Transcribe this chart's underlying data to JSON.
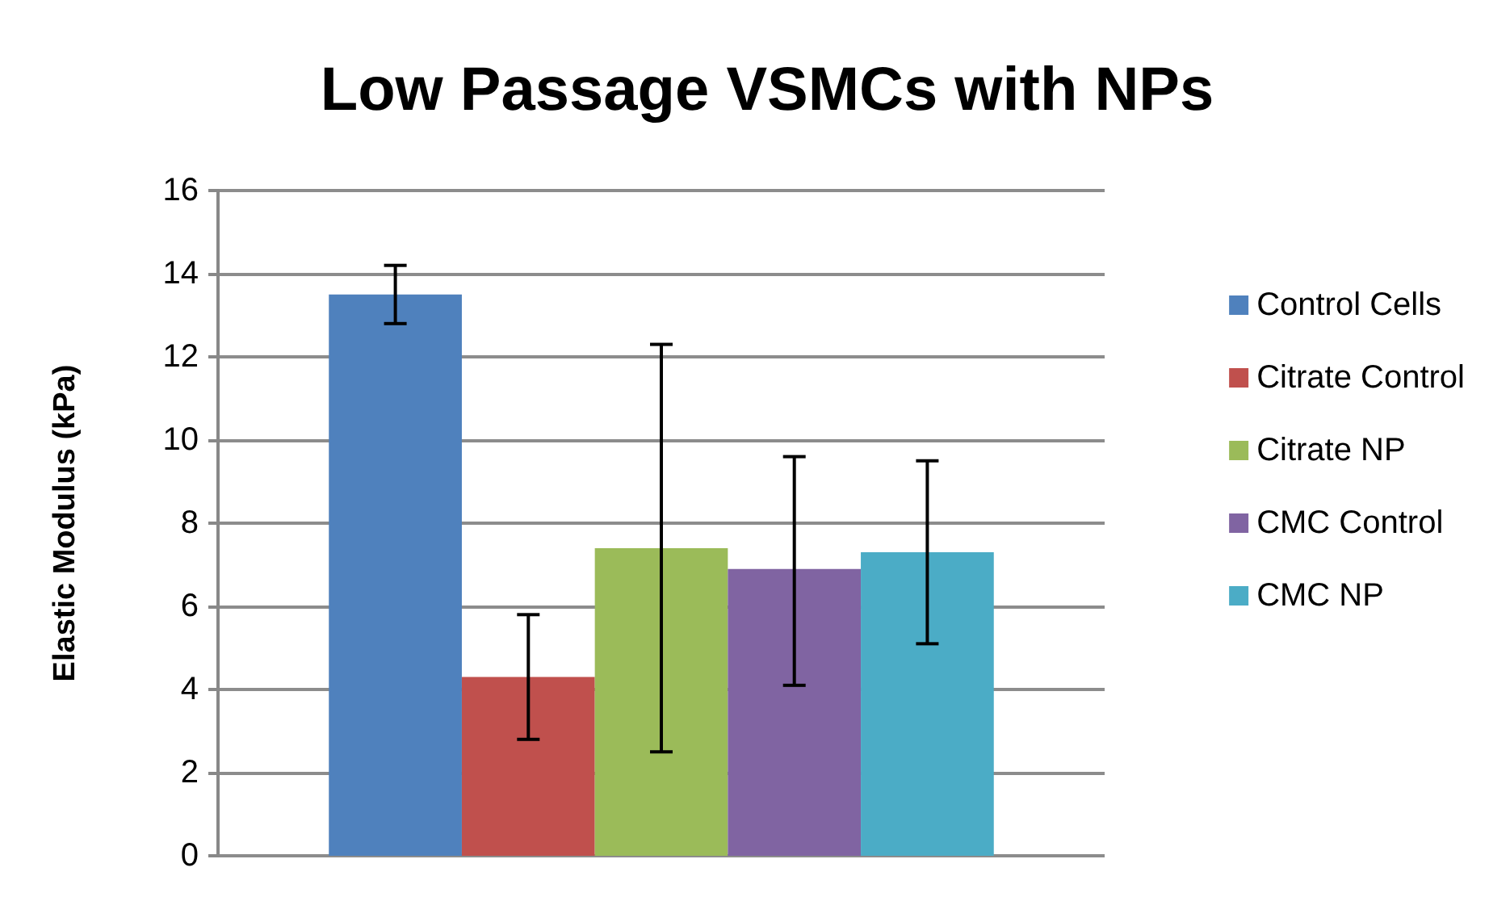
{
  "chart_data": {
    "type": "bar",
    "title": "Low Passage VSMCs with NPs",
    "ylabel": "Elastic Modulus (kPa)",
    "categories": [
      null
    ],
    "series": [
      {
        "name": "Control Cells",
        "color": "#4f81bd",
        "values": [
          13.5
        ],
        "errors": [
          [
            12.8,
            14.2
          ]
        ]
      },
      {
        "name": "Citrate Control",
        "color": "#c0504d",
        "values": [
          4.3
        ],
        "errors": [
          [
            2.8,
            5.8
          ]
        ]
      },
      {
        "name": "Citrate NP",
        "color": "#9bbb59",
        "values": [
          7.4
        ],
        "errors": [
          [
            2.5,
            12.3
          ]
        ]
      },
      {
        "name": "CMC Control",
        "color": "#8064a2",
        "values": [
          6.9
        ],
        "errors": [
          [
            4.1,
            9.6
          ]
        ]
      },
      {
        "name": "CMC NP",
        "color": "#4bacc6",
        "values": [
          7.3
        ],
        "errors": [
          [
            5.1,
            9.5
          ]
        ]
      }
    ],
    "ylim": [
      0,
      16
    ],
    "yticks": [
      0,
      2,
      4,
      6,
      8,
      10,
      12,
      14,
      16
    ],
    "grid": "y",
    "legend": "right"
  }
}
